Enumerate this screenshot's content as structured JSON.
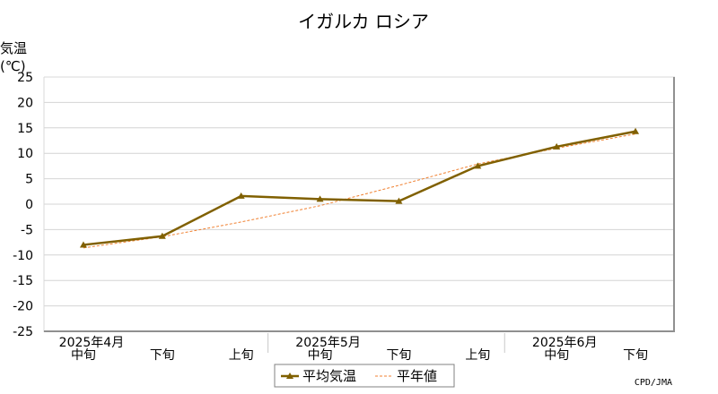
{
  "chart_data": {
    "type": "line",
    "title": "イガルカ ロシア",
    "ylabel_line1": "気温",
    "ylabel_line2": "(℃)",
    "ylim": [
      -25,
      25
    ],
    "yticks": [
      25,
      20,
      15,
      10,
      5,
      0,
      -5,
      -10,
      -15,
      -20,
      -25
    ],
    "categories": [
      "中旬",
      "下旬",
      "上旬",
      "中旬",
      "下旬",
      "上旬",
      "中旬",
      "下旬"
    ],
    "month_labels": [
      {
        "label": "2025年4月",
        "category_index": 0
      },
      {
        "label": "2025年5月",
        "category_index": 3
      },
      {
        "label": "2025年6月",
        "category_index": 6
      }
    ],
    "series": [
      {
        "name": "平均気温",
        "color": "#806000",
        "style": "solid-marker",
        "values": [
          -8.0,
          -6.3,
          1.6,
          1.0,
          0.6,
          7.5,
          11.3,
          14.3
        ]
      },
      {
        "name": "平年値",
        "color": "#f08030",
        "style": "dashed",
        "values": [
          -8.6,
          -6.4,
          -3.5,
          -0.3,
          3.7,
          7.9,
          11.0,
          13.8
        ]
      }
    ],
    "grid": true,
    "legend_position": "bottom-center",
    "credit": "CPD/JMA"
  }
}
